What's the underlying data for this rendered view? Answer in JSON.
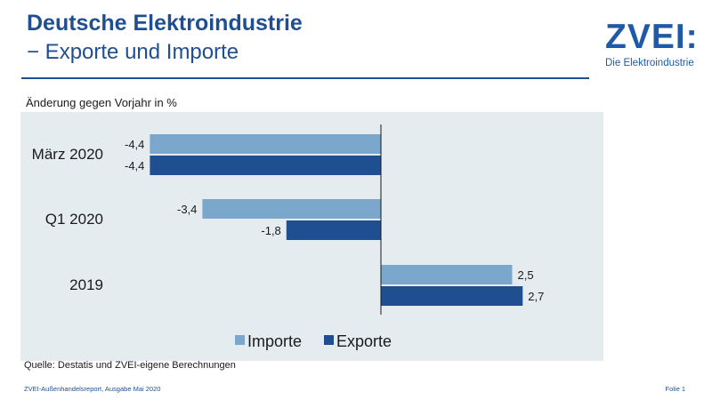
{
  "header": {
    "title": "Deutsche Elektroindustrie",
    "subtitle": "− Exporte und Importe"
  },
  "logo": {
    "wordmark": "ZVEI:",
    "tagline": "Die Elektroindustrie"
  },
  "footer": {
    "source": "Quelle: Destatis und ZVEI-eigene Berechnungen",
    "report": "ZVEI-Außenhandelsreport, Ausgabe Mai 2020",
    "slide": "Folie 1"
  },
  "colors": {
    "title": "#1f4f91",
    "importe": "#7ba7cc",
    "exporte": "#1f4f91",
    "plot_background": "#e4ecf0"
  },
  "chart_data": {
    "type": "bar",
    "orientation": "horizontal",
    "ylabel": "Änderung gegen Vorjahr in %",
    "categories": [
      "März 2020",
      "Q1 2020",
      "2019"
    ],
    "series": [
      {
        "name": "Importe",
        "values": [
          -4.4,
          -3.4,
          2.5
        ],
        "labels": [
          "-4,4",
          "-3,4",
          "2,5"
        ],
        "color": "#7ba7cc"
      },
      {
        "name": "Exporte",
        "values": [
          -4.4,
          -1.8,
          2.7
        ],
        "labels": [
          "-4,4",
          "-1,8",
          "2,7"
        ],
        "color": "#1f4f91"
      }
    ],
    "legend_position": "bottom",
    "grid": false
  }
}
